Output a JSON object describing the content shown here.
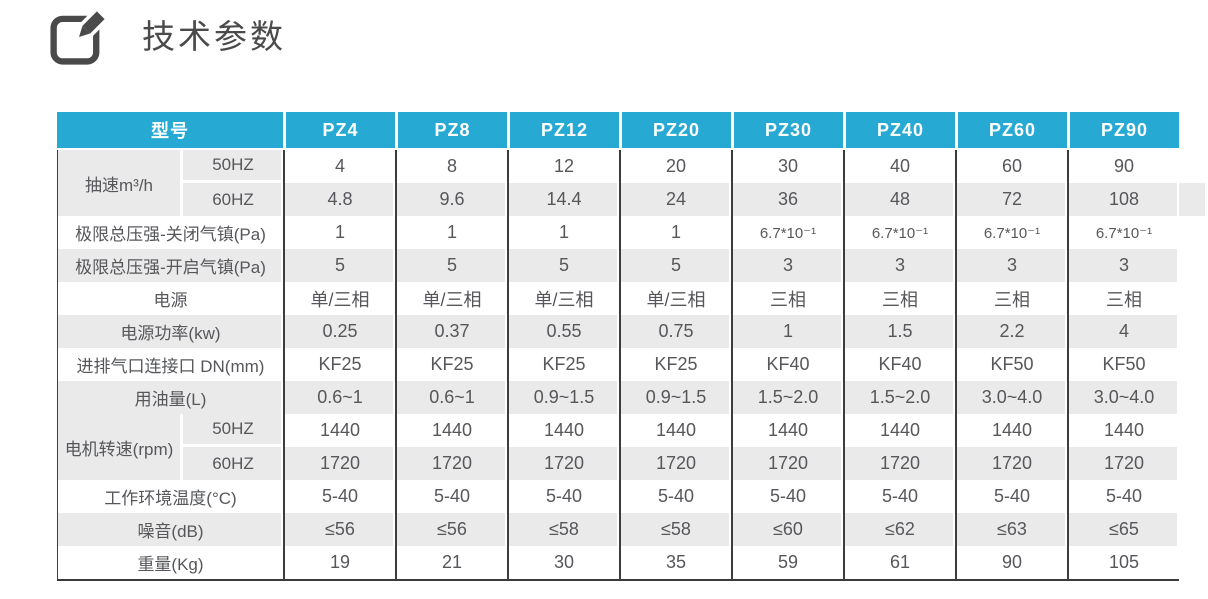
{
  "page": {
    "title": "技术参数"
  },
  "colors": {
    "header_bg": "#26a9d2",
    "header_text": "#ffffff",
    "stripe_gray": "#eaeaea",
    "grid_line": "#3d3d3d",
    "body_text": "#56575b",
    "title_text": "#4a4a4a"
  },
  "table": {
    "header": {
      "model_label": "型号",
      "models": [
        "PZ4",
        "PZ8",
        "PZ12",
        "PZ20",
        "PZ30",
        "PZ40",
        "PZ60",
        "PZ90"
      ]
    },
    "rows": [
      {
        "kind": "group-first",
        "group": "抽速m³/h",
        "sub": "50HZ",
        "values": [
          "4",
          "8",
          "12",
          "20",
          "30",
          "40",
          "60",
          "90"
        ]
      },
      {
        "kind": "group-second",
        "sub": "60HZ",
        "values": [
          "4.8",
          "9.6",
          "14.4",
          "24",
          "36",
          "48",
          "72",
          "108"
        ]
      },
      {
        "kind": "plain",
        "label": "极限总压强-关闭气镇(Pa)",
        "values": [
          "1",
          "1",
          "1",
          "1",
          "6.7*10⁻¹",
          "6.7*10⁻¹",
          "6.7*10⁻¹",
          "6.7*10⁻¹"
        ]
      },
      {
        "kind": "plain",
        "label": "极限总压强-开启气镇(Pa)",
        "values": [
          "5",
          "5",
          "5",
          "5",
          "3",
          "3",
          "3",
          "3"
        ]
      },
      {
        "kind": "plain",
        "label": "电源",
        "values": [
          "单/三相",
          "单/三相",
          "单/三相",
          "单/三相",
          "三相",
          "三相",
          "三相",
          "三相"
        ]
      },
      {
        "kind": "plain",
        "label": "电源功率(kw)",
        "values": [
          "0.25",
          "0.37",
          "0.55",
          "0.75",
          "1",
          "1.5",
          "2.2",
          "4"
        ]
      },
      {
        "kind": "plain",
        "label": "进排气口连接口 DN(mm)",
        "values": [
          "KF25",
          "KF25",
          "KF25",
          "KF25",
          "KF40",
          "KF40",
          "KF50",
          "KF50"
        ]
      },
      {
        "kind": "plain",
        "label": "用油量(L)",
        "values": [
          "0.6~1",
          "0.6~1",
          "0.9~1.5",
          "0.9~1.5",
          "1.5~2.0",
          "1.5~2.0",
          "3.0~4.0",
          "3.0~4.0"
        ]
      },
      {
        "kind": "group-first",
        "group": "电机转速(rpm)",
        "sub": "50HZ",
        "values": [
          "1440",
          "1440",
          "1440",
          "1440",
          "1440",
          "1440",
          "1440",
          "1440"
        ]
      },
      {
        "kind": "group-second",
        "sub": "60HZ",
        "values": [
          "1720",
          "1720",
          "1720",
          "1720",
          "1720",
          "1720",
          "1720",
          "1720"
        ]
      },
      {
        "kind": "plain",
        "label": "工作环境温度(°C)",
        "values": [
          "5-40",
          "5-40",
          "5-40",
          "5-40",
          "5-40",
          "5-40",
          "5-40",
          "5-40"
        ]
      },
      {
        "kind": "plain",
        "label": "噪音(dB)",
        "values": [
          "≤56",
          "≤56",
          "≤58",
          "≤58",
          "≤60",
          "≤62",
          "≤63",
          "≤65"
        ]
      },
      {
        "kind": "plain",
        "label": "重量(Kg)",
        "values": [
          "19",
          "21",
          "30",
          "35",
          "59",
          "61",
          "90",
          "105"
        ]
      }
    ]
  }
}
